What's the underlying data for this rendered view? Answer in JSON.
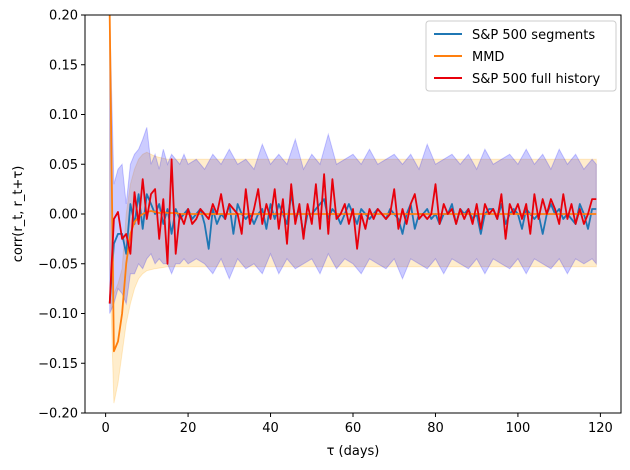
{
  "chart_data": {
    "type": "line",
    "title": "",
    "xlabel": "τ (days)",
    "ylabel": "corr(r_t, r_t+τ)",
    "xlim": [
      -5,
      125
    ],
    "ylim": [
      -0.2,
      0.2
    ],
    "xticks": [
      0,
      20,
      40,
      60,
      80,
      100,
      120
    ],
    "yticks": [
      -0.2,
      -0.15,
      -0.1,
      -0.05,
      0.0,
      0.05,
      0.1,
      0.15,
      0.2
    ],
    "xtick_labels": [
      "0",
      "20",
      "40",
      "60",
      "80",
      "100",
      "120"
    ],
    "ytick_labels": [
      "−0.20",
      "−0.15",
      "−0.10",
      "−0.05",
      "0.00",
      "0.05",
      "0.10",
      "0.15",
      "0.20"
    ],
    "grid": false,
    "legend_position": "top-right",
    "series": [
      {
        "name": "S&P 500 segments",
        "color": "#1f77b4",
        "x": [
          1,
          2,
          3,
          4,
          5,
          6,
          7,
          8,
          9,
          10,
          11,
          12,
          13,
          14,
          15,
          16,
          17,
          18,
          19,
          20,
          21,
          22,
          23,
          24,
          25,
          26,
          27,
          28,
          29,
          30,
          31,
          32,
          33,
          34,
          35,
          36,
          37,
          38,
          39,
          40,
          41,
          42,
          43,
          44,
          45,
          46,
          47,
          48,
          49,
          50,
          51,
          52,
          53,
          54,
          55,
          56,
          57,
          58,
          59,
          60,
          61,
          62,
          63,
          64,
          65,
          66,
          67,
          68,
          69,
          70,
          71,
          72,
          73,
          74,
          75,
          76,
          77,
          78,
          79,
          80,
          81,
          82,
          83,
          84,
          85,
          86,
          87,
          88,
          89,
          90,
          91,
          92,
          93,
          94,
          95,
          96,
          97,
          98,
          99,
          100,
          101,
          102,
          103,
          104,
          105,
          106,
          107,
          108,
          109,
          110,
          111,
          112,
          113,
          114,
          115,
          116,
          117,
          118,
          119
        ],
        "y": [
          -0.09,
          -0.03,
          -0.02,
          -0.02,
          -0.04,
          0.01,
          -0.01,
          0.02,
          -0.015,
          0.02,
          0.01,
          0.0,
          0.01,
          -0.01,
          0.005,
          -0.02,
          0.005,
          -0.005,
          0.0,
          0.005,
          -0.005,
          0.0,
          0.005,
          -0.01,
          -0.035,
          0.005,
          -0.01,
          0.0,
          -0.005,
          0.01,
          -0.02,
          0.01,
          0.0,
          -0.005,
          0.0,
          -0.01,
          0.0,
          0.005,
          -0.015,
          0.01,
          -0.005,
          0.01,
          0.0,
          -0.01,
          0.02,
          -0.005,
          0.005,
          -0.02,
          0.0,
          0.0,
          0.005,
          0.01,
          0.015,
          -0.005,
          0.005,
          0.0,
          -0.01,
          0.0,
          0.01,
          0.0,
          -0.01,
          0.005,
          0.0,
          -0.005,
          0.0,
          0.005,
          0.0,
          -0.005,
          0.005,
          0.0,
          -0.005,
          -0.02,
          0.0,
          0.01,
          -0.015,
          0.0,
          0.0,
          0.005,
          -0.005,
          0.0,
          -0.01,
          0.0,
          0.0,
          0.01,
          -0.01,
          0.005,
          0.0,
          0.005,
          -0.005,
          0.0,
          -0.02,
          0.0,
          0.005,
          0.005,
          -0.005,
          0.01,
          -0.01,
          0.0,
          0.005,
          0.0,
          -0.015,
          0.005,
          0.0,
          -0.005,
          0.0,
          -0.02,
          0.0,
          0.01,
          0.0,
          0.005,
          -0.005,
          0.0,
          -0.005,
          -0.01,
          0.01,
          0.0,
          -0.015,
          0.005,
          0.005
        ]
      },
      {
        "name": "MMD",
        "color": "#ff7f0e",
        "x": [
          1,
          2,
          3,
          4,
          5,
          6,
          7,
          8,
          9,
          10,
          11,
          12,
          13,
          14,
          15,
          16,
          17,
          18,
          19,
          20,
          25,
          30,
          35,
          40,
          45,
          50,
          55,
          60,
          65,
          70,
          75,
          80,
          85,
          90,
          95,
          100,
          105,
          110,
          115,
          119
        ],
        "y": [
          0.2,
          -0.138,
          -0.128,
          -0.1,
          -0.05,
          -0.02,
          -0.008,
          -0.003,
          0.0,
          0.002,
          0.003,
          0.002,
          0.001,
          0.002,
          0.001,
          0.001,
          0.001,
          0.0,
          0.0,
          0.0,
          0.0,
          0.0,
          0.0,
          0.0,
          0.0,
          0.0,
          0.0,
          0.0,
          0.0,
          0.0,
          0.0,
          0.0,
          0.0,
          0.0,
          0.0,
          0.0,
          0.0,
          0.0,
          0.0,
          0.0
        ]
      },
      {
        "name": "S&P 500 full history",
        "color": "#e8000b",
        "x": [
          1,
          2,
          3,
          4,
          5,
          6,
          7,
          8,
          9,
          10,
          11,
          12,
          13,
          14,
          15,
          16,
          17,
          18,
          19,
          20,
          21,
          22,
          23,
          24,
          25,
          26,
          27,
          28,
          29,
          30,
          31,
          32,
          33,
          34,
          35,
          36,
          37,
          38,
          39,
          40,
          41,
          42,
          43,
          44,
          45,
          46,
          47,
          48,
          49,
          50,
          51,
          52,
          53,
          54,
          55,
          56,
          57,
          58,
          59,
          60,
          61,
          62,
          63,
          64,
          65,
          66,
          67,
          68,
          69,
          70,
          71,
          72,
          73,
          74,
          75,
          76,
          77,
          78,
          79,
          80,
          81,
          82,
          83,
          84,
          85,
          86,
          87,
          88,
          89,
          90,
          91,
          92,
          93,
          94,
          95,
          96,
          97,
          98,
          99,
          100,
          101,
          102,
          103,
          104,
          105,
          106,
          107,
          108,
          109,
          110,
          111,
          112,
          113,
          114,
          115,
          116,
          117,
          118,
          119
        ],
        "y": [
          -0.09,
          -0.005,
          0.002,
          -0.025,
          -0.02,
          -0.04,
          0.022,
          -0.01,
          0.035,
          -0.005,
          0.02,
          0.025,
          -0.025,
          0.015,
          -0.05,
          0.055,
          -0.04,
          0.0,
          -0.01,
          0.005,
          -0.01,
          -0.005,
          0.005,
          0.0,
          -0.005,
          0.01,
          0.0,
          0.02,
          -0.005,
          0.01,
          0.005,
          0.0,
          -0.02,
          0.025,
          -0.01,
          0.005,
          0.025,
          -0.01,
          0.01,
          -0.005,
          0.025,
          -0.015,
          0.015,
          -0.03,
          0.03,
          -0.01,
          0.01,
          -0.025,
          0.01,
          -0.01,
          0.03,
          -0.015,
          0.04,
          -0.02,
          0.035,
          -0.005,
          0.0,
          0.01,
          -0.01,
          0.005,
          -0.035,
          0.0,
          -0.015,
          0.005,
          -0.005,
          0.005,
          0.0,
          -0.005,
          0.0,
          0.025,
          -0.015,
          0.005,
          -0.01,
          0.01,
          0.02,
          -0.005,
          0.0,
          -0.005,
          0.0,
          0.03,
          -0.01,
          0.01,
          0.0,
          0.005,
          -0.01,
          0.005,
          -0.005,
          0.005,
          -0.01,
          0.01,
          -0.015,
          0.01,
          0.0,
          0.005,
          -0.005,
          0.02,
          -0.025,
          0.01,
          0.0,
          0.01,
          -0.005,
          0.01,
          -0.02,
          0.02,
          -0.005,
          0.015,
          0.0,
          0.015,
          0.005,
          -0.01,
          0.02,
          -0.005,
          0.01,
          -0.01,
          0.005,
          -0.01,
          0.0,
          0.015,
          0.015
        ]
      }
    ],
    "bands": [
      {
        "color": "#ffa500",
        "opacity": 0.2,
        "x": [
          1,
          2,
          3,
          4,
          5,
          6,
          7,
          8,
          9,
          10,
          12,
          15,
          20,
          30,
          40,
          50,
          60,
          70,
          80,
          90,
          100,
          110,
          119
        ],
        "lower": [
          -0.05,
          -0.19,
          -0.17,
          -0.14,
          -0.11,
          -0.09,
          -0.075,
          -0.065,
          -0.06,
          -0.057,
          -0.055,
          -0.053,
          -0.053,
          -0.053,
          -0.053,
          -0.053,
          -0.053,
          -0.053,
          -0.053,
          -0.053,
          -0.053,
          -0.053,
          -0.053
        ],
        "upper": [
          0.2,
          -0.08,
          -0.07,
          -0.055,
          0.0,
          0.03,
          0.045,
          0.055,
          0.06,
          0.062,
          0.058,
          0.055,
          0.055,
          0.055,
          0.055,
          0.055,
          0.055,
          0.055,
          0.055,
          0.055,
          0.055,
          0.055,
          0.055
        ]
      },
      {
        "color": "#0000ff",
        "opacity": 0.2,
        "x": [
          1,
          2,
          3,
          4,
          5,
          6,
          7,
          8,
          9,
          10,
          11,
          12,
          13,
          14,
          15,
          16,
          17,
          18,
          19,
          20,
          22,
          24,
          26,
          28,
          30,
          32,
          34,
          36,
          38,
          40,
          42,
          44,
          46,
          48,
          50,
          52,
          54,
          56,
          58,
          60,
          62,
          64,
          66,
          68,
          70,
          72,
          74,
          76,
          78,
          80,
          82,
          84,
          86,
          88,
          90,
          92,
          94,
          96,
          98,
          100,
          102,
          104,
          106,
          108,
          110,
          112,
          114,
          116,
          118,
          119
        ],
        "lower": [
          -0.1,
          -0.09,
          -0.075,
          -0.08,
          -0.09,
          -0.06,
          -0.06,
          -0.05,
          -0.055,
          -0.045,
          -0.04,
          -0.05,
          -0.045,
          -0.05,
          -0.05,
          -0.06,
          -0.05,
          -0.05,
          -0.045,
          -0.05,
          -0.045,
          -0.05,
          -0.06,
          -0.045,
          -0.065,
          -0.045,
          -0.055,
          -0.05,
          -0.06,
          -0.04,
          -0.06,
          -0.045,
          -0.055,
          -0.05,
          -0.045,
          -0.06,
          -0.04,
          -0.055,
          -0.045,
          -0.05,
          -0.06,
          -0.045,
          -0.05,
          -0.055,
          -0.045,
          -0.065,
          -0.045,
          -0.05,
          -0.055,
          -0.045,
          -0.06,
          -0.045,
          -0.05,
          -0.055,
          -0.045,
          -0.06,
          -0.045,
          -0.05,
          -0.055,
          -0.045,
          -0.06,
          -0.045,
          -0.05,
          -0.055,
          -0.045,
          -0.06,
          -0.045,
          -0.05,
          -0.045,
          -0.05
        ],
        "upper": [
          0.2,
          0.03,
          0.045,
          0.05,
          0.01,
          0.05,
          0.06,
          0.065,
          0.075,
          0.087,
          0.05,
          0.06,
          0.045,
          0.065,
          0.05,
          0.06,
          0.055,
          0.05,
          0.06,
          0.05,
          0.055,
          0.045,
          0.06,
          0.05,
          0.065,
          0.05,
          0.055,
          0.045,
          0.07,
          0.05,
          0.06,
          0.05,
          0.075,
          0.045,
          0.06,
          0.05,
          0.08,
          0.05,
          0.055,
          0.06,
          0.05,
          0.065,
          0.05,
          0.055,
          0.06,
          0.05,
          0.06,
          0.045,
          0.07,
          0.05,
          0.055,
          0.06,
          0.05,
          0.06,
          0.045,
          0.065,
          0.05,
          0.055,
          0.06,
          0.05,
          0.065,
          0.05,
          0.06,
          0.045,
          0.065,
          0.05,
          0.06,
          0.045,
          0.055,
          0.05
        ]
      }
    ]
  }
}
